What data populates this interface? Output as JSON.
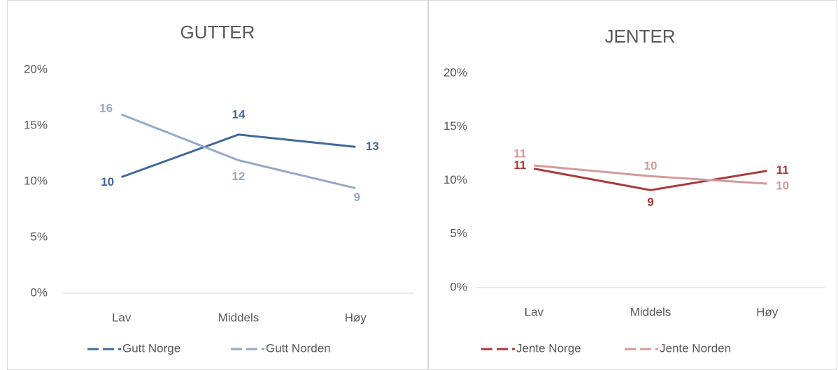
{
  "chart_data": [
    {
      "type": "line",
      "title": "GUTTER",
      "categories": [
        "Lav",
        "Middels",
        "Høy"
      ],
      "series": [
        {
          "name": "Gutt Norge",
          "color": "#41699b",
          "values": [
            10.4,
            14.2,
            13.1
          ],
          "value_labels": [
            "10",
            "14",
            "13"
          ]
        },
        {
          "name": "Gutt Norden",
          "color": "#94a9c9",
          "values": [
            16.0,
            11.9,
            9.4
          ],
          "value_labels": [
            "16",
            "12",
            "9"
          ]
        }
      ],
      "ylim": [
        0,
        20
      ],
      "yticks": [
        {
          "value": 0,
          "label": "0%"
        },
        {
          "value": 5,
          "label": "5%"
        },
        {
          "value": 10,
          "label": "10%"
        },
        {
          "value": 15,
          "label": "15%"
        },
        {
          "value": 20,
          "label": "20%"
        }
      ],
      "grid": false,
      "legend": "bottom"
    },
    {
      "type": "line",
      "title": "JENTER",
      "categories": [
        "Lav",
        "Middels",
        "Høy"
      ],
      "series": [
        {
          "name": "Jente Norge",
          "color": "#a93a3a",
          "values": [
            11.1,
            9.1,
            10.9
          ],
          "value_labels": [
            "11",
            "9",
            "11"
          ]
        },
        {
          "name": "Jente Norden",
          "color": "#d49a9a",
          "values": [
            11.4,
            10.4,
            9.7
          ],
          "value_labels": [
            "11",
            "10",
            "10"
          ]
        }
      ],
      "ylim": [
        0,
        20
      ],
      "yticks": [
        {
          "value": 0,
          "label": "0%"
        },
        {
          "value": 5,
          "label": "5%"
        },
        {
          "value": 10,
          "label": "10%"
        },
        {
          "value": 15,
          "label": "15%"
        },
        {
          "value": 20,
          "label": "20%"
        }
      ],
      "grid": false,
      "legend": "bottom"
    }
  ]
}
